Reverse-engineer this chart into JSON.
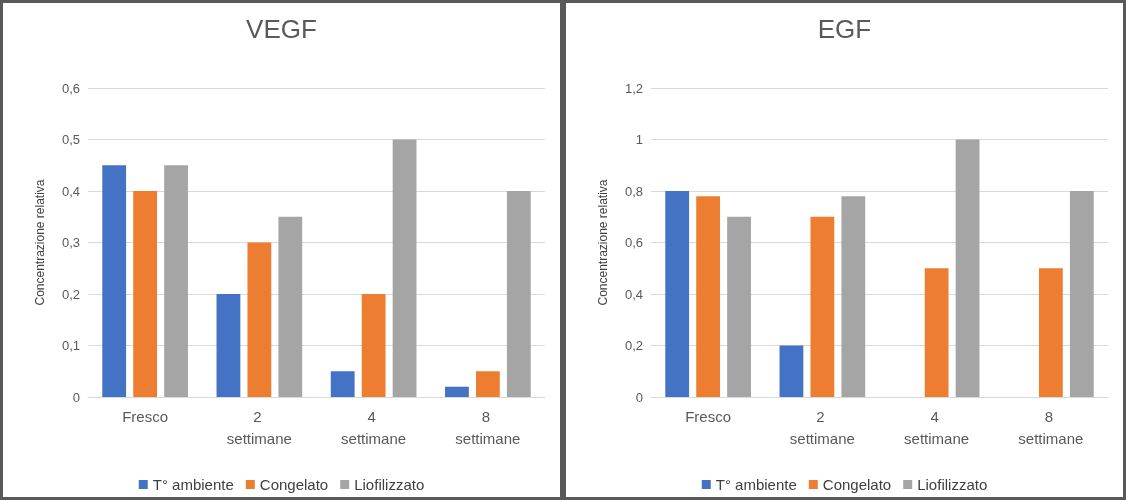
{
  "chart_data": [
    {
      "type": "bar",
      "title": "VEGF",
      "ylabel": "Concentrazione relativa",
      "categories": [
        "Fresco",
        "2 settimane",
        "4 settimane",
        "8 settimane"
      ],
      "series": [
        {
          "name": "T° ambiente",
          "color": "#4472c4",
          "values": [
            0.45,
            0.2,
            0.05,
            0.02
          ]
        },
        {
          "name": "Congelato",
          "color": "#ed7d31",
          "values": [
            0.4,
            0.3,
            0.2,
            0.05
          ]
        },
        {
          "name": "Liofilizzato",
          "color": "#a5a5a5",
          "values": [
            0.45,
            0.35,
            0.5,
            0.4
          ]
        }
      ],
      "ylim": [
        0,
        0.6
      ],
      "yticks": [
        {
          "value": 0,
          "label": "0"
        },
        {
          "value": 0.1,
          "label": "0,1"
        },
        {
          "value": 0.2,
          "label": "0,2"
        },
        {
          "value": 0.3,
          "label": "0,3"
        },
        {
          "value": 0.4,
          "label": "0,4"
        },
        {
          "value": 0.5,
          "label": "0,5"
        },
        {
          "value": 0.6,
          "label": "0,6"
        }
      ],
      "grid": "y",
      "legend": "bottom"
    },
    {
      "type": "bar",
      "title": "EGF",
      "ylabel": "Concentrazione relativa",
      "categories": [
        "Fresco",
        "2 settimane",
        "4 settimane",
        "8 settimane"
      ],
      "series": [
        {
          "name": "T° ambiente",
          "color": "#4472c4",
          "values": [
            0.8,
            0.2,
            0,
            0
          ]
        },
        {
          "name": "Congelato",
          "color": "#ed7d31",
          "values": [
            0.78,
            0.7,
            0.5,
            0.5
          ]
        },
        {
          "name": "Liofilizzato",
          "color": "#a5a5a5",
          "values": [
            0.7,
            0.78,
            1,
            0.8
          ]
        }
      ],
      "ylim": [
        0,
        1.2
      ],
      "yticks": [
        {
          "value": 0,
          "label": "0"
        },
        {
          "value": 0.2,
          "label": "0,2"
        },
        {
          "value": 0.4,
          "label": "0,4"
        },
        {
          "value": 0.6,
          "label": "0,6"
        },
        {
          "value": 0.8,
          "label": "0,8"
        },
        {
          "value": 1,
          "label": "1"
        },
        {
          "value": 1.2,
          "label": "1,2"
        }
      ],
      "grid": "y",
      "legend": "bottom"
    }
  ]
}
